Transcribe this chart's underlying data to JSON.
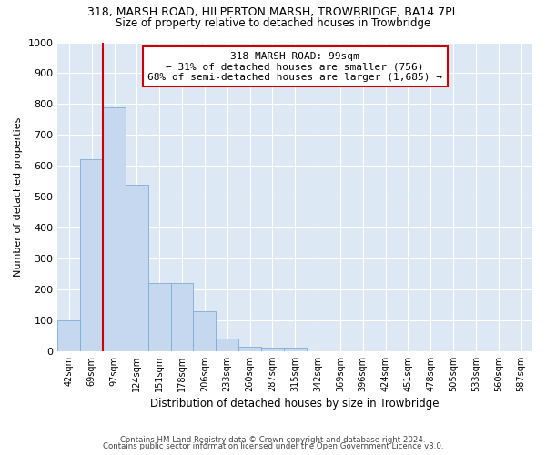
{
  "title_line1": "318, MARSH ROAD, HILPERTON MARSH, TROWBRIDGE, BA14 7PL",
  "title_line2": "Size of property relative to detached houses in Trowbridge",
  "xlabel": "Distribution of detached houses by size in Trowbridge",
  "ylabel": "Number of detached properties",
  "bar_color": "#c5d8f0",
  "bar_edge_color": "#7aadd4",
  "categories": [
    "42sqm",
    "69sqm",
    "97sqm",
    "124sqm",
    "151sqm",
    "178sqm",
    "206sqm",
    "233sqm",
    "260sqm",
    "287sqm",
    "315sqm",
    "342sqm",
    "369sqm",
    "396sqm",
    "424sqm",
    "451sqm",
    "478sqm",
    "505sqm",
    "533sqm",
    "560sqm",
    "587sqm"
  ],
  "values": [
    100,
    620,
    790,
    540,
    220,
    220,
    130,
    40,
    15,
    10,
    10,
    0,
    0,
    0,
    0,
    0,
    0,
    0,
    0,
    0,
    0
  ],
  "ylim": [
    0,
    1000
  ],
  "yticks": [
    0,
    100,
    200,
    300,
    400,
    500,
    600,
    700,
    800,
    900,
    1000
  ],
  "property_line_index": 2,
  "property_label": "318 MARSH ROAD: 99sqm",
  "annotation_line1": "← 31% of detached houses are smaller (756)",
  "annotation_line2": "68% of semi-detached houses are larger (1,685) →",
  "annotation_box_color": "#ffffff",
  "annotation_box_edge": "#cc0000",
  "vline_color": "#cc0000",
  "footnote1": "Contains HM Land Registry data © Crown copyright and database right 2024.",
  "footnote2": "Contains public sector information licensed under the Open Government Licence v3.0.",
  "background_color": "#ffffff",
  "plot_bg_color": "#dde8f5"
}
